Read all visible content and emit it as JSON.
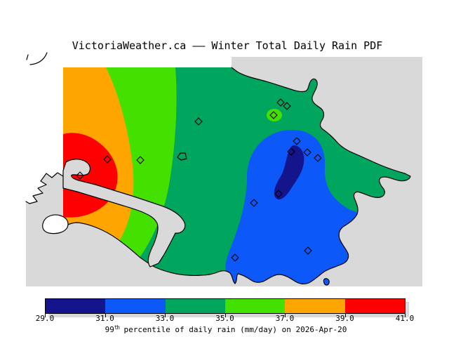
{
  "title": "VictoriaWeather.ca –– Winter Total Daily Rain PDF",
  "colorbar": {
    "ticks": [
      "29.0",
      "31.0",
      "33.0",
      "35.0",
      "37.0",
      "39.0",
      "41.0"
    ],
    "segments": [
      {
        "from": "29.0",
        "to": "31.0",
        "color": "#14148c"
      },
      {
        "from": "31.0",
        "to": "33.0",
        "color": "#0d58f8"
      },
      {
        "from": "33.0",
        "to": "35.0",
        "color": "#00a55e"
      },
      {
        "from": "35.0",
        "to": "37.0",
        "color": "#44e000"
      },
      {
        "from": "37.0",
        "to": "39.0",
        "color": "#ffa500"
      },
      {
        "from": "39.0",
        "to": "41.0",
        "color": "#ff0000"
      }
    ],
    "caption": {
      "prefix": "99",
      "sup": "th",
      "suffix": " percentile of daily rain (mm/day) on 2026-Apr-20"
    }
  },
  "colors": {
    "ocean": "#d9d9d9",
    "outside_land": "#ffffff",
    "coastline": "#000000",
    "band_29_31": "#14148c",
    "band_31_33": "#0d58f8",
    "band_33_35": "#00a55e",
    "band_35_37": "#44e000",
    "band_37_39": "#ffa500",
    "band_39_41": "#ff0000"
  },
  "map": {
    "percentile": "99th",
    "units": "mm/day",
    "date": "2026-Apr-20",
    "stations": [
      [
        153,
        227
      ],
      [
        200,
        228
      ],
      [
        114,
        250
      ],
      [
        283,
        173
      ],
      [
        400,
        146
      ],
      [
        409,
        151
      ],
      [
        390,
        164
      ],
      [
        423,
        201
      ],
      [
        415,
        216
      ],
      [
        438,
        217
      ],
      [
        453,
        225
      ],
      [
        397,
        276
      ],
      [
        362,
        289
      ],
      [
        335,
        367
      ],
      [
        439,
        357
      ]
    ]
  }
}
